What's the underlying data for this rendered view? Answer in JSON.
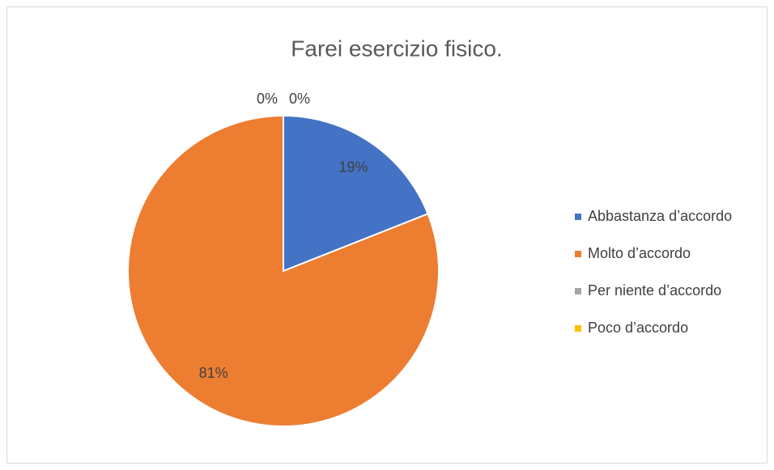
{
  "chart_data": {
    "type": "pie",
    "title": "Farei esercizio fisico.",
    "categories": [
      "Abbastanza d’accordo",
      "Molto d’accordo",
      "Per niente d’accordo",
      "Poco d’accordo"
    ],
    "values": [
      19,
      81,
      0,
      0
    ],
    "value_labels": [
      "19%",
      "81%",
      "0%",
      "0%"
    ],
    "colors": [
      "#4472c4",
      "#ed7d31",
      "#a5a5a5",
      "#ffc000"
    ],
    "legend": "right"
  }
}
